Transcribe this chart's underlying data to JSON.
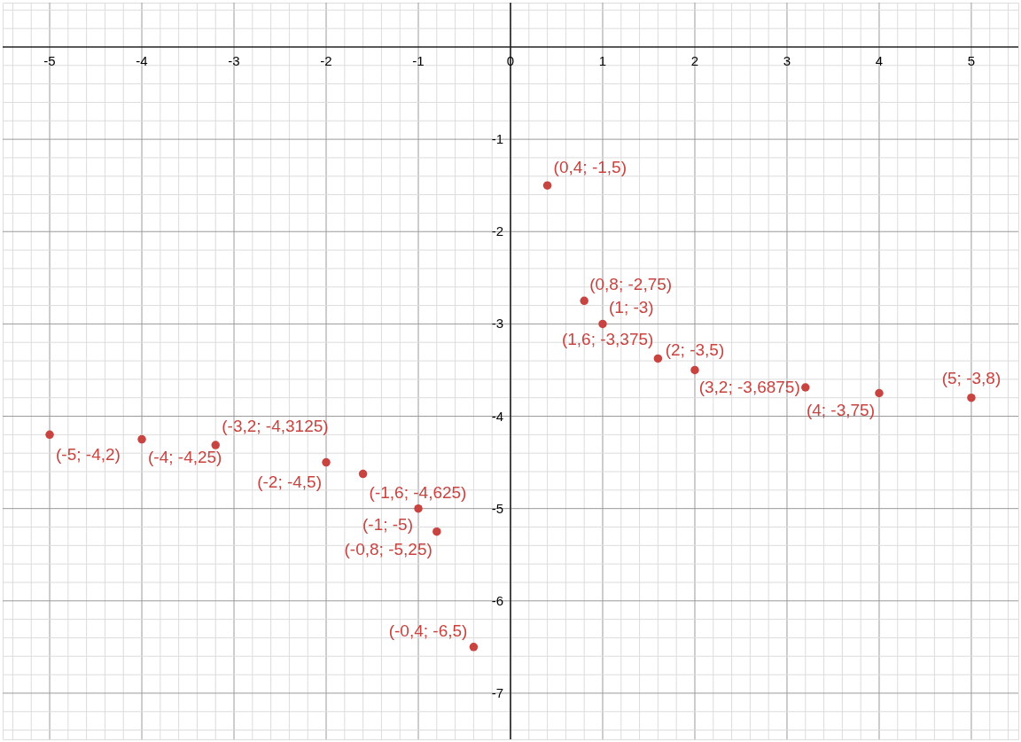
{
  "chart_data": {
    "type": "scatter",
    "x": [
      0.4,
      0.8,
      1,
      1.6,
      2,
      3.2,
      4,
      5,
      -5,
      -4,
      -3.2,
      -2,
      -1.6,
      -1,
      -0.8,
      -0.4
    ],
    "series": [
      {
        "color": "#c74440",
        "values": [
          -1.5,
          -2.75,
          -3,
          -3.375,
          -3.5,
          -3.6875,
          -3.75,
          -3.8,
          -4.2,
          -4.25,
          -4.3125,
          -4.5,
          -4.625,
          -5,
          -5.25,
          -6.5
        ],
        "value_labels": [
          "(0,4; -1,5)",
          "(0,8; -2,75)",
          "(1; -3)",
          "(1,6; -3,375)",
          "(2; -3,5)",
          "(3,2; -3,6875)",
          "(4; -3,75)",
          "(5; -3,8)",
          "(-5; -4,2)",
          "(-4; -4,25)",
          "(-3,2; -4,3125)",
          "(-2; -4,5)",
          "(-1,6; -4,625)",
          "(-1; -5)",
          "(-0,8; -5,25)",
          "(-0,4; -6,5)"
        ]
      }
    ],
    "marker": "circle",
    "grid": true,
    "xlim": [
      -5.51,
      5.51
    ],
    "ylim": [
      -7.5,
      0.48
    ],
    "xticks": [
      {
        "value": -5.4,
        "label": null
      },
      {
        "value": -5.2,
        "label": null
      },
      -5,
      {
        "value": -4.8,
        "label": null
      },
      {
        "value": -4.6,
        "label": null
      },
      {
        "value": -4.4,
        "label": null
      },
      {
        "value": -4.2,
        "label": null
      },
      -4,
      {
        "value": -3.8,
        "label": null
      },
      {
        "value": -3.6,
        "label": null
      },
      {
        "value": -3.4,
        "label": null
      },
      {
        "value": -3.2,
        "label": null
      },
      -3,
      {
        "value": -2.8,
        "label": null
      },
      {
        "value": -2.6,
        "label": null
      },
      {
        "value": -2.4,
        "label": null
      },
      {
        "value": -2.2,
        "label": null
      },
      -2,
      {
        "value": -1.8,
        "label": null
      },
      {
        "value": -1.6,
        "label": null
      },
      {
        "value": -1.4,
        "label": null
      },
      {
        "value": -1.2,
        "label": null
      },
      -1,
      {
        "value": -0.8,
        "label": null
      },
      {
        "value": -0.6,
        "label": null
      },
      {
        "value": -0.4,
        "label": null
      },
      {
        "value": -0.2,
        "label": null
      },
      0,
      {
        "value": 0.2,
        "label": null
      },
      {
        "value": 0.4,
        "label": null
      },
      {
        "value": 0.6,
        "label": null
      },
      {
        "value": 0.8,
        "label": null
      },
      1,
      {
        "value": 1.2,
        "label": null
      },
      {
        "value": 1.4,
        "label": null
      },
      {
        "value": 1.6,
        "label": null
      },
      {
        "value": 1.8,
        "label": null
      },
      2,
      {
        "value": 2.2,
        "label": null
      },
      {
        "value": 2.4,
        "label": null
      },
      {
        "value": 2.6,
        "label": null
      },
      {
        "value": 2.8,
        "label": null
      },
      3,
      {
        "value": 3.2,
        "label": null
      },
      {
        "value": 3.4,
        "label": null
      },
      {
        "value": 3.6,
        "label": null
      },
      {
        "value": 3.8,
        "label": null
      },
      4,
      {
        "value": 4.2,
        "label": null
      },
      {
        "value": 4.4,
        "label": null
      },
      {
        "value": 4.6,
        "label": null
      },
      {
        "value": 4.8,
        "label": null
      },
      5,
      {
        "value": 5.2,
        "label": null
      },
      {
        "value": 5.4,
        "label": null
      }
    ],
    "yticks": [
      {
        "value": 0.4,
        "label": null
      },
      {
        "value": 0.2,
        "label": null
      },
      {
        "value": -0.2,
        "label": null
      },
      {
        "value": -0.4,
        "label": null
      },
      {
        "value": -0.6,
        "label": null
      },
      {
        "value": -0.8,
        "label": null
      },
      -1,
      {
        "value": -1.2,
        "label": null
      },
      {
        "value": -1.4,
        "label": null
      },
      {
        "value": -1.6,
        "label": null
      },
      {
        "value": -1.8,
        "label": null
      },
      -2,
      {
        "value": -2.2,
        "label": null
      },
      {
        "value": -2.4,
        "label": null
      },
      {
        "value": -2.6,
        "label": null
      },
      {
        "value": -2.8,
        "label": null
      },
      -3,
      {
        "value": -3.2,
        "label": null
      },
      {
        "value": -3.4,
        "label": null
      },
      {
        "value": -3.6,
        "label": null
      },
      {
        "value": -3.8,
        "label": null
      },
      -4,
      {
        "value": -4.2,
        "label": null
      },
      {
        "value": -4.4,
        "label": null
      },
      {
        "value": -4.6,
        "label": null
      },
      {
        "value": -4.8,
        "label": null
      },
      -5,
      {
        "value": -5.2,
        "label": null
      },
      {
        "value": -5.4,
        "label": null
      },
      {
        "value": -5.6,
        "label": null
      },
      {
        "value": -5.8,
        "label": null
      },
      -6,
      {
        "value": -6.2,
        "label": null
      },
      {
        "value": -6.4,
        "label": null
      },
      {
        "value": -6.6,
        "label": null
      },
      {
        "value": -6.8,
        "label": null
      },
      -7,
      {
        "value": -7.2,
        "label": null
      },
      {
        "value": -7.4,
        "label": null
      }
    ]
  }
}
